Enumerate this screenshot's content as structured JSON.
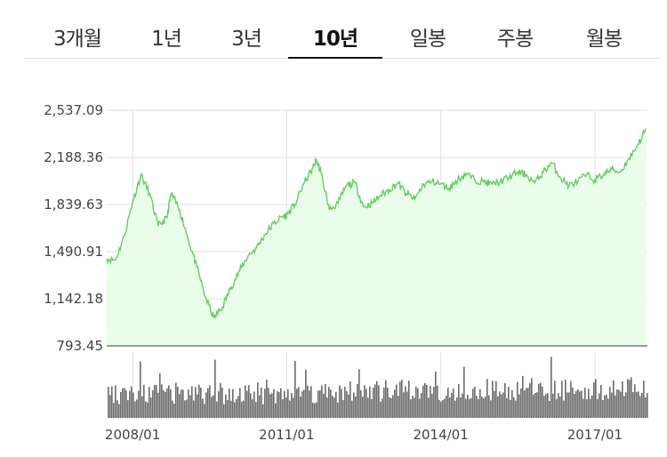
{
  "tabs": [
    {
      "label": "3개월",
      "active": false
    },
    {
      "label": "1년",
      "active": false
    },
    {
      "label": "3년",
      "active": false
    },
    {
      "label": "10년",
      "active": true
    },
    {
      "label": "일봉",
      "active": false
    },
    {
      "label": "주봉",
      "active": false
    },
    {
      "label": "월봉",
      "active": false
    }
  ],
  "chart_data": {
    "type": "area",
    "ylim": [
      793.45,
      2537.09
    ],
    "y_ticks": [
      "2,537.09",
      "2,188.36",
      "1,839.63",
      "1,490.91",
      "1,142.18",
      "793.45"
    ],
    "x_ticks": [
      "2008/01",
      "2011/01",
      "2014/01",
      "2017/01"
    ],
    "grid": true,
    "colors": {
      "line": "#66cc66",
      "fill": "#eafcea",
      "volume": "#6b6b6b",
      "grid": "#e3e3e3",
      "baseline": "#9a9a9a"
    },
    "series": [
      {
        "x": [
          "2007-07",
          "2007-09",
          "2007-11",
          "2008-01",
          "2008-03",
          "2008-05",
          "2008-07",
          "2008-09",
          "2008-10",
          "2008-12",
          "2009-02",
          "2009-04",
          "2009-06",
          "2009-08",
          "2009-10",
          "2009-12",
          "2010-02",
          "2010-04",
          "2010-06",
          "2010-08",
          "2010-10",
          "2010-12",
          "2011-01",
          "2011-03",
          "2011-05",
          "2011-07",
          "2011-08",
          "2011-09",
          "2011-11",
          "2012-01",
          "2012-03",
          "2012-05",
          "2012-07",
          "2012-09",
          "2012-11",
          "2013-01",
          "2013-03",
          "2013-05",
          "2013-07",
          "2013-09",
          "2013-11",
          "2014-01",
          "2014-03",
          "2014-05",
          "2014-07",
          "2014-09",
          "2014-11",
          "2015-01",
          "2015-03",
          "2015-05",
          "2015-07",
          "2015-09",
          "2015-11",
          "2016-01",
          "2016-03",
          "2016-05",
          "2016-07",
          "2016-09",
          "2016-11",
          "2017-01",
          "2017-03",
          "2017-05",
          "2017-07",
          "2017-09",
          "2017-11",
          "2018-01"
        ],
        "values": [
          1440,
          1430,
          1600,
          1860,
          2060,
          1920,
          1680,
          1740,
          1920,
          1800,
          1580,
          1380,
          1160,
          1000,
          1080,
          1230,
          1350,
          1460,
          1520,
          1620,
          1700,
          1750,
          1760,
          1840,
          1990,
          2100,
          2170,
          2080,
          1800,
          1850,
          1980,
          2000,
          1820,
          1850,
          1910,
          1950,
          2000,
          1920,
          1880,
          1990,
          2010,
          1990,
          1960,
          2020,
          2070,
          2020,
          2010,
          1990,
          2010,
          2040,
          2080,
          2060,
          2000,
          2080,
          2150,
          2040,
          1980,
          2010,
          2060,
          2020,
          2060,
          2100,
          2080,
          2180,
          2280,
          2400
        ]
      }
    ],
    "volume": {
      "x": [
        "2007-07",
        "2017-12"
      ],
      "relative_level": [
        0.35,
        0.45
      ]
    }
  }
}
